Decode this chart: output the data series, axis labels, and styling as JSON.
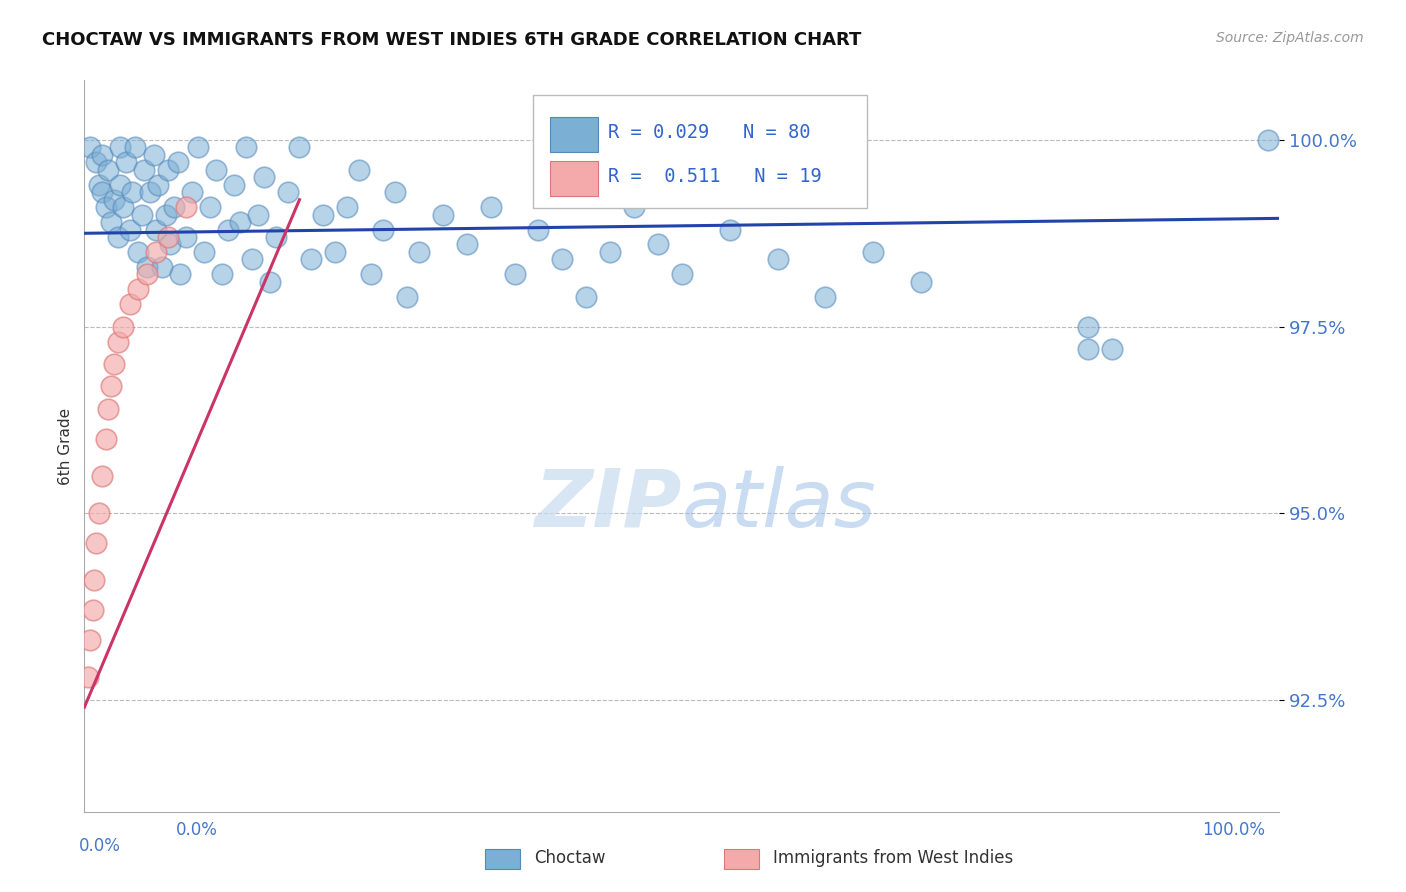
{
  "title": "CHOCTAW VS IMMIGRANTS FROM WEST INDIES 6TH GRADE CORRELATION CHART",
  "source": "Source: ZipAtlas.com",
  "ylabel": "6th Grade",
  "ytick_labels": [
    "100.0%",
    "97.5%",
    "95.0%",
    "92.5%"
  ],
  "ytick_positions": [
    1.0,
    0.975,
    0.95,
    0.925
  ],
  "xlim": [
    0.0,
    1.0
  ],
  "ylim": [
    0.91,
    1.008
  ],
  "blue_color": "#7BAFD4",
  "blue_edge": "#5588BB",
  "pink_color": "#F4AAAA",
  "pink_edge": "#DD7777",
  "trend_blue_color": "#2244AA",
  "trend_pink_color": "#CC3366",
  "watermark_zip": "ZIP",
  "watermark_atlas": "atlas",
  "background_color": "#FFFFFF",
  "legend_r1_text": "R = 0.029",
  "legend_n1_text": "N = 80",
  "legend_r2_text": "R =  0.511",
  "legend_n2_text": "N = 19",
  "blue_scatter_x": [
    0.005,
    0.01,
    0.012,
    0.015,
    0.015,
    0.018,
    0.02,
    0.022,
    0.025,
    0.028,
    0.03,
    0.03,
    0.032,
    0.035,
    0.038,
    0.04,
    0.042,
    0.045,
    0.048,
    0.05,
    0.052,
    0.055,
    0.058,
    0.06,
    0.062,
    0.065,
    0.068,
    0.07,
    0.072,
    0.075,
    0.078,
    0.08,
    0.085,
    0.09,
    0.095,
    0.1,
    0.105,
    0.11,
    0.115,
    0.12,
    0.125,
    0.13,
    0.135,
    0.14,
    0.145,
    0.15,
    0.155,
    0.16,
    0.17,
    0.18,
    0.19,
    0.2,
    0.21,
    0.22,
    0.23,
    0.24,
    0.25,
    0.26,
    0.27,
    0.28,
    0.3,
    0.32,
    0.34,
    0.36,
    0.38,
    0.4,
    0.42,
    0.44,
    0.46,
    0.48,
    0.5,
    0.54,
    0.58,
    0.62,
    0.66,
    0.7,
    0.84,
    0.86,
    0.99,
    0.84
  ],
  "blue_scatter_y": [
    0.999,
    0.997,
    0.994,
    0.998,
    0.993,
    0.991,
    0.996,
    0.989,
    0.992,
    0.987,
    0.999,
    0.994,
    0.991,
    0.997,
    0.988,
    0.993,
    0.999,
    0.985,
    0.99,
    0.996,
    0.983,
    0.993,
    0.998,
    0.988,
    0.994,
    0.983,
    0.99,
    0.996,
    0.986,
    0.991,
    0.997,
    0.982,
    0.987,
    0.993,
    0.999,
    0.985,
    0.991,
    0.996,
    0.982,
    0.988,
    0.994,
    0.989,
    0.999,
    0.984,
    0.99,
    0.995,
    0.981,
    0.987,
    0.993,
    0.999,
    0.984,
    0.99,
    0.985,
    0.991,
    0.996,
    0.982,
    0.988,
    0.993,
    0.979,
    0.985,
    0.99,
    0.986,
    0.991,
    0.982,
    0.988,
    0.984,
    0.979,
    0.985,
    0.991,
    0.986,
    0.982,
    0.988,
    0.984,
    0.979,
    0.985,
    0.981,
    0.975,
    0.972,
    1.0,
    0.972
  ],
  "pink_scatter_x": [
    0.003,
    0.005,
    0.007,
    0.008,
    0.01,
    0.012,
    0.015,
    0.018,
    0.02,
    0.022,
    0.025,
    0.028,
    0.032,
    0.038,
    0.045,
    0.052,
    0.06,
    0.07,
    0.085
  ],
  "pink_scatter_y": [
    0.928,
    0.933,
    0.937,
    0.941,
    0.946,
    0.95,
    0.955,
    0.96,
    0.964,
    0.967,
    0.97,
    0.973,
    0.975,
    0.978,
    0.98,
    0.982,
    0.985,
    0.987,
    0.991
  ],
  "blue_trend_x": [
    0.0,
    1.0
  ],
  "blue_trend_y": [
    0.9875,
    0.9895
  ],
  "pink_trend_x": [
    0.0,
    0.18
  ],
  "pink_trend_y": [
    0.924,
    0.992
  ]
}
